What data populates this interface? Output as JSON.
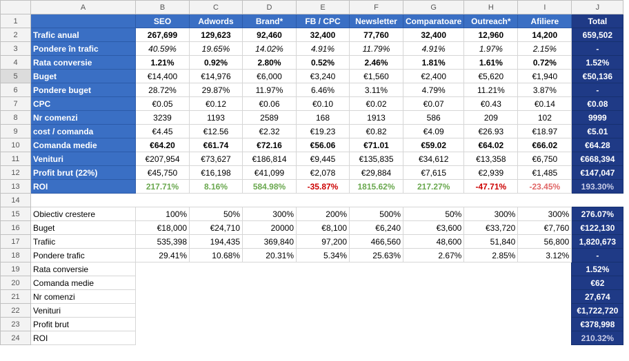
{
  "columns": [
    "A",
    "B",
    "C",
    "D",
    "E",
    "F",
    "G",
    "H",
    "I",
    "J"
  ],
  "header_row": {
    "rownum": "1",
    "cells": [
      "",
      "SEO",
      "Adwords",
      "Brand*",
      "FB / CPC",
      "Newsletter",
      "Comparatoare",
      "Outreach*",
      "Afiliere",
      "Total"
    ]
  },
  "top_rows": [
    {
      "rownum": "2",
      "label": "Trafic anual",
      "values": [
        "267,699",
        "129,623",
        "92,460",
        "32,400",
        "77,760",
        "32,400",
        "12,960",
        "14,200"
      ],
      "total": "659,502",
      "style": "b"
    },
    {
      "rownum": "3",
      "label": "Pondere în trafic",
      "values": [
        "40.59%",
        "19.65%",
        "14.02%",
        "4.91%",
        "11.79%",
        "4.91%",
        "1.97%",
        "2.15%"
      ],
      "total": "-",
      "style": "i"
    },
    {
      "rownum": "4",
      "label": "Rata conversie",
      "values": [
        "1.21%",
        "0.92%",
        "2.80%",
        "0.52%",
        "2.46%",
        "1.81%",
        "1.61%",
        "0.72%"
      ],
      "total": "1.52%",
      "style": "b"
    },
    {
      "rownum": "5",
      "label": "Buget",
      "values": [
        "€14,400",
        "€14,976",
        "€6,000",
        "€3,240",
        "€1,560",
        "€2,400",
        "€5,620",
        "€1,940"
      ],
      "total": "€50,136",
      "style": "",
      "label_bold": false
    },
    {
      "rownum": "6",
      "label": "Pondere buget",
      "values": [
        "28.72%",
        "29.87%",
        "11.97%",
        "6.46%",
        "3.11%",
        "4.79%",
        "11.21%",
        "3.87%"
      ],
      "total": "-",
      "style": "",
      "label_bold": false
    },
    {
      "rownum": "7",
      "label": "CPC",
      "values": [
        "€0.05",
        "€0.12",
        "€0.06",
        "€0.10",
        "€0.02",
        "€0.07",
        "€0.43",
        "€0.14"
      ],
      "total": "€0.08",
      "style": "",
      "label_bold": false
    },
    {
      "rownum": "8",
      "label": "Nr comenzi",
      "values": [
        "3239",
        "1193",
        "2589",
        "168",
        "1913",
        "586",
        "209",
        "102"
      ],
      "total": "9999",
      "style": "",
      "label_bold": false
    },
    {
      "rownum": "9",
      "label": "cost / comanda",
      "values": [
        "€4.45",
        "€12.56",
        "€2.32",
        "€19.23",
        "€0.82",
        "€4.09",
        "€26.93",
        "€18.97"
      ],
      "total": "€5.01",
      "style": ""
    },
    {
      "rownum": "10",
      "label": "Comanda medie",
      "values": [
        "€64.20",
        "€61.74",
        "€72.16",
        "€56.06",
        "€71.01",
        "€59.02",
        "€64.02",
        "€66.02"
      ],
      "total": "€64.28",
      "style": "b"
    },
    {
      "rownum": "11",
      "label": "Venituri",
      "values": [
        "€207,954",
        "€73,627",
        "€186,814",
        "€9,445",
        "€135,835",
        "€34,612",
        "€13,358",
        "€6,750"
      ],
      "total": "€668,394",
      "style": ""
    },
    {
      "rownum": "12",
      "label": "Profit brut (22%)",
      "values": [
        "€45,750",
        "€16,198",
        "€41,099",
        "€2,078",
        "€29,884",
        "€7,615",
        "€2,939",
        "€1,485"
      ],
      "total": "€147,047",
      "style": ""
    },
    {
      "rownum": "13",
      "label": "ROI",
      "values": [
        "217.71%",
        "8.16%",
        "584.98%",
        "-35.87%",
        "1815.62%",
        "217.27%",
        "-47.71%",
        "-23.45%"
      ],
      "total": "193.30%",
      "style": "roi",
      "colors": [
        "green",
        "green",
        "green",
        "red",
        "green",
        "green",
        "red",
        "redlight"
      ]
    }
  ],
  "gap_rownum": "14",
  "bottom_rows": [
    {
      "rownum": "15",
      "label": "Obiectiv crestere",
      "values": [
        "100%",
        "50%",
        "300%",
        "200%",
        "500%",
        "50%",
        "300%",
        "300%"
      ],
      "total": "276.07%"
    },
    {
      "rownum": "16",
      "label": "Buget",
      "values": [
        "€18,000",
        "€24,710",
        "20000",
        "€8,100",
        "€6,240",
        "€3,600",
        "€33,720",
        "€7,760"
      ],
      "total": "€122,130"
    },
    {
      "rownum": "17",
      "label": "Trafiic",
      "values": [
        "535,398",
        "194,435",
        "369,840",
        "97,200",
        "466,560",
        "48,600",
        "51,840",
        "56,800"
      ],
      "total": "1,820,673"
    },
    {
      "rownum": "18",
      "label": "Pondere trafic",
      "values": [
        "29.41%",
        "10.68%",
        "20.31%",
        "5.34%",
        "25.63%",
        "2.67%",
        "2.85%",
        "3.12%"
      ],
      "total": "-"
    },
    {
      "rownum": "19",
      "label": "Rata conversie",
      "values": [],
      "total": "1.52%"
    },
    {
      "rownum": "20",
      "label": "Comanda medie",
      "values": [],
      "total": "€62"
    },
    {
      "rownum": "21",
      "label": "Nr comenzi",
      "values": [],
      "total": "27,674"
    },
    {
      "rownum": "22",
      "label": "Venituri",
      "values": [],
      "total": "€1,722,720"
    },
    {
      "rownum": "23",
      "label": "Profit brut",
      "values": [],
      "total": "€378,998"
    },
    {
      "rownum": "24",
      "label": "ROI",
      "values": [],
      "total": "210.32%"
    }
  ],
  "selected_row": "5"
}
